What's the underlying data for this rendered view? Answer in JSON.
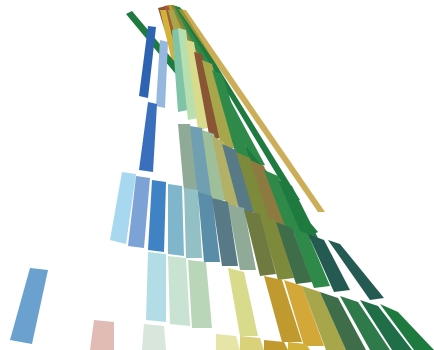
{
  "palette": {
    "background": "#ffffff",
    "green_dark": "#1f7a3f",
    "green_mid": "#2f8a4a",
    "teal_dark": "#255a52",
    "olive": "#7d8a3c",
    "olive_light": "#a8a64a",
    "mustard": "#c09a2e",
    "gold": "#d3b23a",
    "khaki": "#d8da8c",
    "sage": "#9fbf9a",
    "mint": "#c8e3d2",
    "mint_pale": "#d9ece3",
    "aqua_pale": "#b3dde6",
    "sky": "#a8d8f0",
    "steel": "#6f9fb0",
    "slate": "#587a86",
    "blue_mid": "#3f83c4",
    "blue_dark": "#2d63b0",
    "periwinkle": "#7da3d6",
    "blue_light": "#96b8de",
    "blue_soft": "#6aa1cf",
    "rose": "#e0bcb5",
    "brown": "#8a5535",
    "rust": "#a65a35",
    "grey_green": "#8faa96"
  }
}
